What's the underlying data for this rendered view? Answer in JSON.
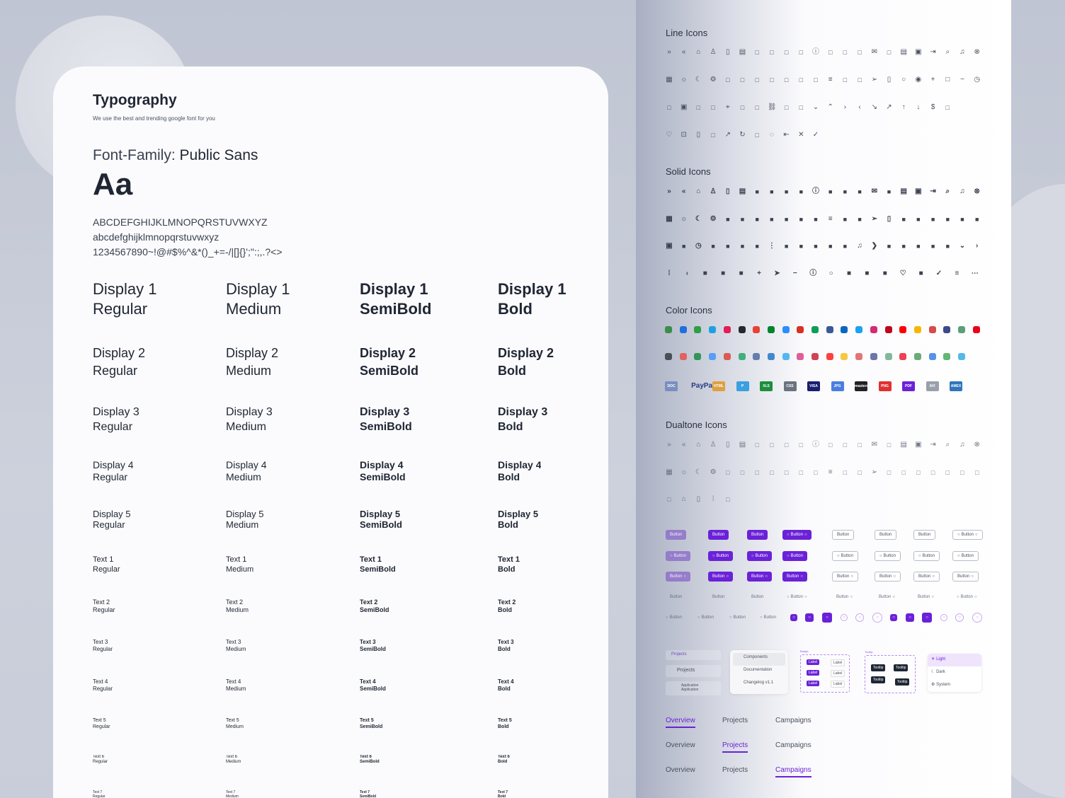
{
  "typography": {
    "title": "Typography",
    "subtitle": "We use the best and trending google font for you",
    "family_label": "Font-Family: ",
    "family_name": "Public Sans",
    "sample": "Aa",
    "upper": "ABCDEFGHIJKLMNOPQRSTUVWXYZ",
    "lower": "abcdefghijklmnopqrstuvwxyz",
    "symbols": "1234567890~!@#$%^&*()_+=-/|[]{}';\":;,.?<>",
    "weights": [
      "Regular",
      "Medium",
      "SemiBold",
      "Bold"
    ],
    "styles": [
      "Display 1",
      "Display 2",
      "Display 3",
      "Display 4",
      "Display 5",
      "Text 1",
      "Text 2",
      "Text 3",
      "Text 4",
      "Text 5",
      "Text 6",
      "Text 7"
    ]
  },
  "sections": {
    "line": "Line Icons",
    "solid": "Solid Icons",
    "color": "Color Icons",
    "dualtone": "Dualtone Icons"
  },
  "icons": {
    "line": [
      [
        "chevrons-right",
        "chevrons-left",
        "home",
        "user",
        "file",
        "document",
        "globe",
        "rss",
        "share",
        "bag",
        "info",
        "chat",
        "basket",
        "headset",
        "mail",
        "message",
        "clipboard",
        "calendar",
        "logout",
        "search",
        "bell",
        "close-circle"
      ],
      [
        "grid",
        "sun",
        "moon",
        "settings",
        "file-text",
        "chat-bubbles",
        "image",
        "pie-chart",
        "bank",
        "edit",
        "messages",
        "sliders",
        "comment",
        "paperclip",
        "send",
        "trash",
        "circle",
        "radio",
        "plus",
        "square",
        "minus",
        "clock"
      ],
      [
        "briefcase",
        "calendar",
        "users",
        "globe",
        "pin",
        "inbox",
        "camera",
        "link",
        "card",
        "shield",
        "chevron-down",
        "chevron-up",
        "chevron-right",
        "chevron-left",
        "trend-down",
        "trend-up",
        "arrow-up",
        "arrow-down",
        "dollar",
        "copy"
      ],
      [
        "heart",
        "lock",
        "file",
        "fingerprint",
        "trend",
        "refresh",
        "note",
        "check-circle",
        "login",
        "x",
        "check"
      ]
    ],
    "solid": [
      [
        "chevrons-right",
        "chevrons-left",
        "home",
        "user",
        "file",
        "document",
        "globe",
        "rss",
        "share",
        "bag",
        "info",
        "chat",
        "basket",
        "headset",
        "mail",
        "message",
        "clipboard",
        "calendar",
        "logout",
        "search",
        "bell",
        "close-circle"
      ],
      [
        "grid",
        "sun",
        "moon",
        "settings",
        "file-text",
        "chat-bubbles",
        "image",
        "pie-chart",
        "bank",
        "edit",
        "messages",
        "sliders",
        "comment",
        "paperclip",
        "send",
        "trash",
        "house",
        "plane",
        "hat",
        "diamond",
        "award",
        "building"
      ],
      [
        "calendar",
        "car",
        "clock",
        "download",
        "slack",
        "camera",
        "check-square",
        "more-vertical",
        "pie-chart",
        "toggle",
        "key",
        "pen",
        "graduation",
        "bell",
        "play",
        "smile",
        "drop",
        "chat",
        "folder",
        "wallet",
        "chevron-down",
        "chevron-right"
      ],
      [
        "dots-grid",
        "chevron-left",
        "paperclip",
        "bar-chart",
        "mountain",
        "plus",
        "arrow-right",
        "minus",
        "info",
        "circle",
        "copy",
        "thumbs-up",
        "folder",
        "heart",
        "layers",
        "check",
        "menu",
        "more"
      ]
    ],
    "dualtone": [
      [
        "chevrons-right",
        "chevrons-left",
        "home",
        "user",
        "file",
        "document",
        "globe",
        "rss",
        "share",
        "bag",
        "info",
        "chat",
        "basket",
        "headset",
        "mail",
        "message",
        "clipboard",
        "calendar",
        "logout",
        "search",
        "bell",
        "close-circle"
      ],
      [
        "grid",
        "sun",
        "moon",
        "settings",
        "file-text",
        "chat-bubbles",
        "image",
        "pie-chart",
        "bank",
        "edit",
        "messages",
        "sliders",
        "comment",
        "paperclip",
        "send",
        "align-left",
        "align-vertical",
        "contact",
        "camera",
        "barcode",
        "code",
        "layers"
      ],
      [
        "box",
        "home",
        "file",
        "dots-grid",
        "scan"
      ]
    ]
  },
  "color_icons": [
    [
      "evernote",
      "dropbox",
      "google-drive",
      "skype",
      "slack",
      "github",
      "chrome",
      "google-meet",
      "zoom",
      "gmail",
      "hangouts",
      "facebook",
      "linkedin",
      "twitter",
      "instagram",
      "pinterest",
      "youtube",
      "tray",
      "target",
      "citi",
      "gitlab",
      "mastercard"
    ],
    [
      "skrill",
      "visa",
      "bitcoin",
      "ripple",
      "ethereum",
      "litecoin",
      "dollar-coin",
      "dash",
      "dashlane",
      "windows",
      "opera",
      "safari",
      "firefox",
      "edge",
      "google",
      "soundcloud",
      "behance",
      "facebook",
      "messenger",
      "twitter",
      "google"
    ]
  ],
  "brand_row": [
    "DOC",
    "PayPal",
    "HTML",
    "P",
    "XLS",
    "CSS",
    "VISA",
    "JPG",
    "mastercard",
    "PNG",
    "PDF",
    "AVI",
    "AMEX"
  ],
  "button_label": "Button",
  "components": {
    "nav": [
      "Projects",
      "Projects",
      "Application",
      "Application"
    ],
    "menu": [
      "Components",
      "Documentation",
      "Changelog v1.1"
    ],
    "badge_title": "Badge",
    "badge": [
      "Label",
      "Label",
      "Label",
      "Label",
      "Label",
      "Label"
    ],
    "tooltip_title": "Tooltip",
    "tooltips": [
      "Tooltip",
      "Tooltip",
      "Tooltip",
      "Tooltip"
    ],
    "theme": [
      "Light",
      "Dark",
      "System"
    ]
  },
  "tabs": [
    [
      "Overview",
      "Projects",
      "Campaigns"
    ],
    [
      "Overview",
      "Projects",
      "Campaigns"
    ],
    [
      "Overview",
      "Projects",
      "Campaigns"
    ]
  ],
  "active_tabs": [
    0,
    1,
    2
  ],
  "colors": {
    "accent": "#6b21d8",
    "text": "#1f2633"
  }
}
